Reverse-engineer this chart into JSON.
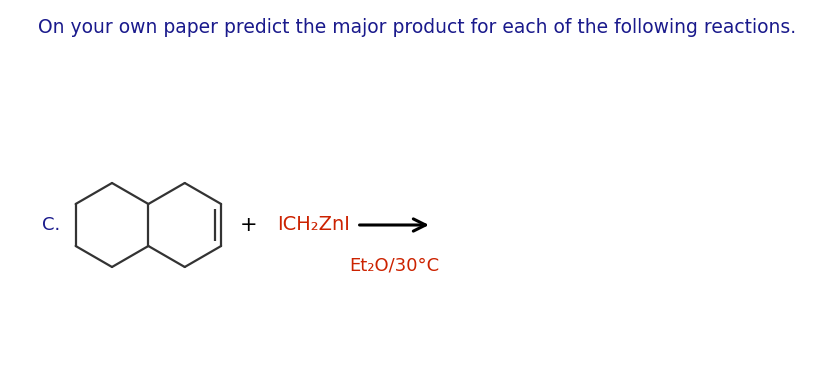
{
  "title_text": "On your own paper predict the major product for each of the following reactions.",
  "title_fontsize": 13.5,
  "title_color": "#1a1a8c",
  "label_c": "C.",
  "label_c_fontsize": 13,
  "reagent_text": "ICH₂ZnI",
  "reagent_fontsize": 14,
  "reagent_color": "#cc2200",
  "condition_text": "Et₂O/30°C",
  "condition_fontsize": 13,
  "condition_color": "#cc2200",
  "bg_color": "#ffffff",
  "line_color": "#333333",
  "plus_color": "#000000",
  "arrow_color": "#000000"
}
